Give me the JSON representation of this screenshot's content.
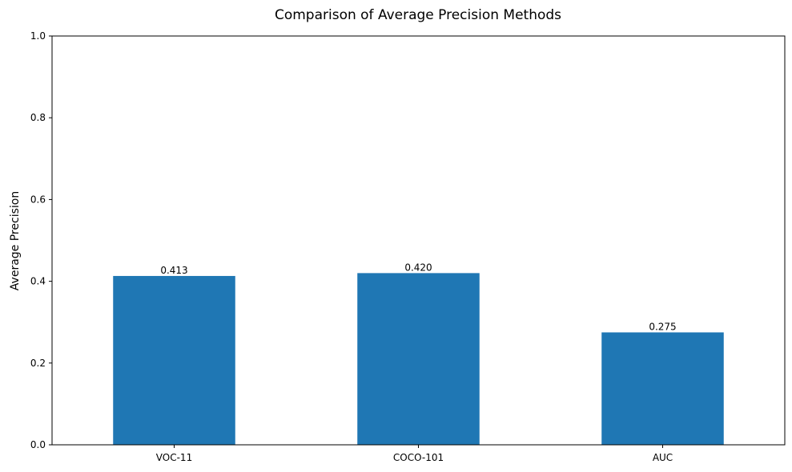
{
  "chart_data": {
    "type": "bar",
    "title": "Comparison of Average Precision Methods",
    "xlabel": "",
    "ylabel": "Average Precision",
    "categories": [
      "VOC-11",
      "COCO-101",
      "AUC"
    ],
    "values": [
      0.413,
      0.42,
      0.275
    ],
    "data_labels": [
      "0.413",
      "0.420",
      "0.275"
    ],
    "ylim": [
      0,
      1
    ],
    "y_ticks": [
      0.0,
      0.2,
      0.4,
      0.6,
      0.8,
      1.0
    ],
    "y_tick_labels": [
      "0.0",
      "0.2",
      "0.4",
      "0.6",
      "0.8",
      "1.0"
    ],
    "grid": false,
    "legend": "none",
    "bar_color": "#1f77b4"
  }
}
